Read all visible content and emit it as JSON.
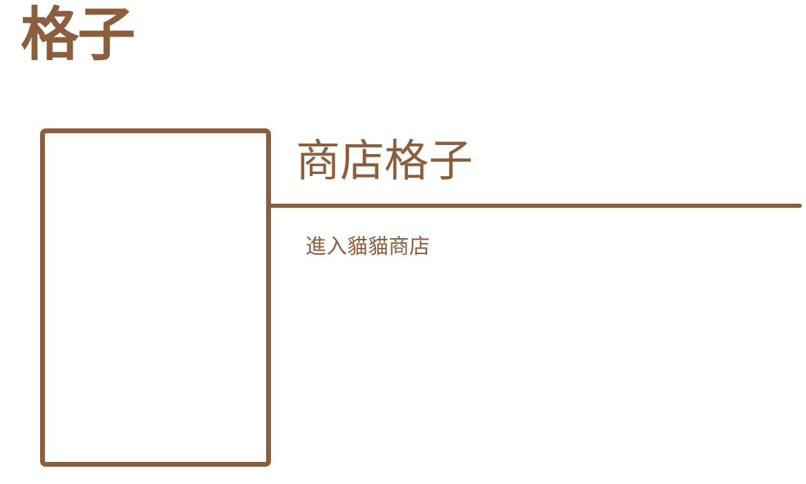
{
  "page": {
    "title": "格子",
    "accent_color": "#8c5e3c",
    "background_color": "#ffffff"
  },
  "section": {
    "title": "商店格子",
    "link_label": "進入貓貓商店"
  }
}
